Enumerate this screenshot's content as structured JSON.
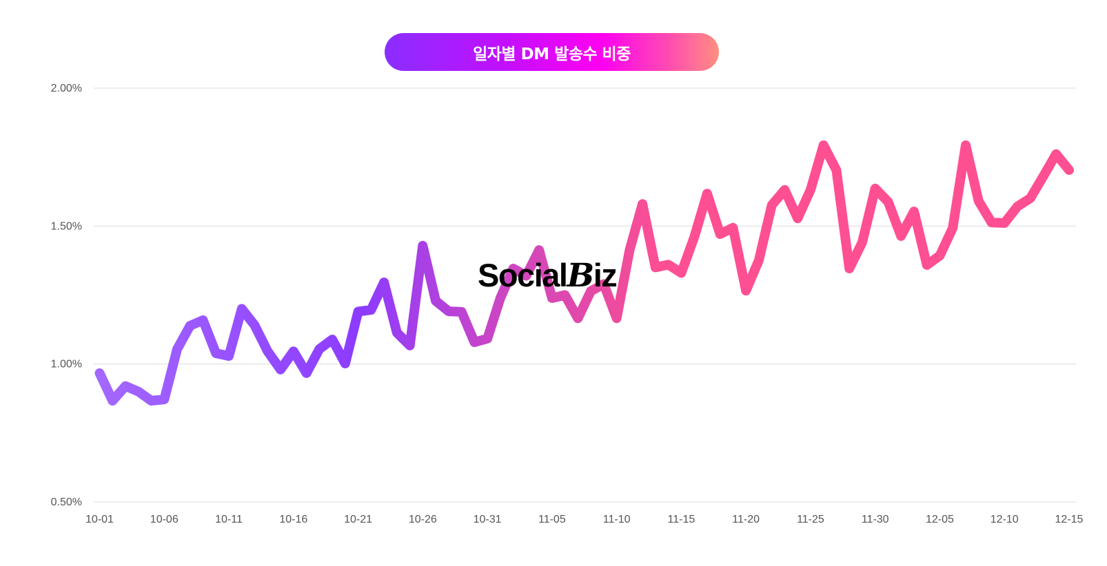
{
  "chart_data": {
    "type": "line",
    "title": "일자별 DM 발송수 비중",
    "xlabel": "",
    "ylabel": "",
    "ylim": [
      0.5,
      2.0
    ],
    "yticks": [
      "0.50%",
      "1.00%",
      "1.50%",
      "2.00%"
    ],
    "ytick_values": [
      0.5,
      1.0,
      1.5,
      2.0
    ],
    "xticks": [
      "10-01",
      "10-06",
      "10-11",
      "10-16",
      "10-21",
      "10-26",
      "10-31",
      "11-05",
      "11-10",
      "11-15",
      "11-20",
      "11-25",
      "11-30",
      "12-05",
      "12-10",
      "12-15"
    ],
    "grid": true,
    "x_start": "10-01",
    "x_end": "12-15",
    "series": [
      {
        "values": [
          0.967,
          0.867,
          0.92,
          0.9,
          0.867,
          0.872,
          1.054,
          1.139,
          1.159,
          1.039,
          1.029,
          1.2,
          1.14,
          1.046,
          0.98,
          1.046,
          0.967,
          1.054,
          1.089,
          1.002,
          1.19,
          1.196,
          1.296,
          1.114,
          1.067,
          1.429,
          1.229,
          1.191,
          1.189,
          1.079,
          1.092,
          1.239,
          1.346,
          1.32,
          1.413,
          1.239,
          1.25,
          1.166,
          1.264,
          1.29,
          1.166,
          1.413,
          1.58,
          1.35,
          1.36,
          1.33,
          1.46,
          1.618,
          1.471,
          1.494,
          1.266,
          1.376,
          1.576,
          1.631,
          1.528,
          1.631,
          1.793,
          1.703,
          1.346,
          1.441,
          1.636,
          1.588,
          1.464,
          1.553,
          1.359,
          1.393,
          1.493,
          1.793,
          1.591,
          1.513,
          1.511,
          1.571,
          1.601,
          1.68,
          1.761,
          1.703
        ],
        "gradient_colors": [
          "#a368ff",
          "#8c3bff",
          "#c845c8",
          "#ff4f93"
        ]
      }
    ],
    "watermark": "SocialBiz"
  }
}
